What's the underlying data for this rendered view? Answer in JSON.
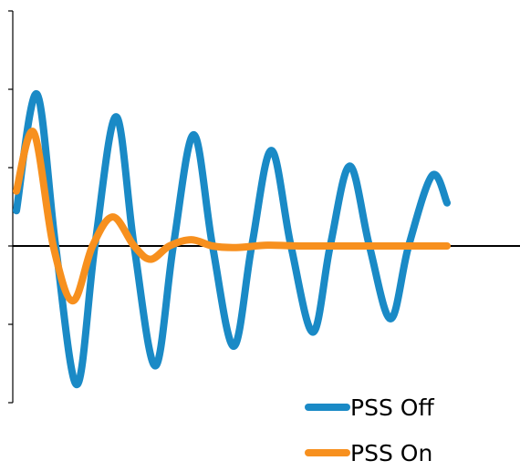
{
  "chart_data": {
    "type": "line",
    "xlim": [
      0,
      6.42
    ],
    "ylim": [
      -2,
      3
    ],
    "yticks": [
      -2,
      -1,
      0,
      1,
      2,
      3
    ],
    "legend": "bottom-right",
    "series": [
      {
        "name": "PSS Off",
        "color": "#1a8ac6",
        "x": [
          0,
          0.26,
          0.5,
          0.77,
          1.0,
          1.27,
          1.5,
          1.77,
          2.0,
          2.26,
          2.5,
          2.77,
          3.0,
          3.25,
          3.5,
          3.78,
          4.0,
          4.25,
          4.5,
          4.77,
          5.0,
          5.3,
          5.49
        ],
        "values": [
          0.45,
          1.94,
          0,
          -1.77,
          0,
          1.65,
          0,
          -1.53,
          0,
          1.42,
          0,
          -1.28,
          0,
          1.22,
          0,
          -1.1,
          0,
          1.02,
          0,
          -0.93,
          0,
          0.9,
          0.55
        ]
      },
      {
        "name": "PSS On",
        "color": "#f7901e",
        "x": [
          0,
          0.22,
          0.47,
          0.72,
          0.97,
          1.23,
          1.5,
          1.71,
          1.95,
          2.23,
          2.5,
          2.8,
          3.2,
          3.6,
          4.5,
          5.49
        ],
        "values": [
          0.7,
          1.45,
          0,
          -0.7,
          0,
          0.37,
          0,
          -0.17,
          0,
          0.08,
          0,
          -0.02,
          0.01,
          0,
          0,
          0
        ]
      }
    ]
  }
}
